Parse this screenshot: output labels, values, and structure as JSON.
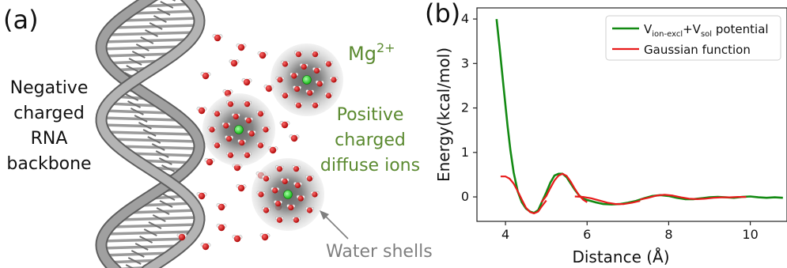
{
  "panel_a": {
    "label": "(a)",
    "backbone_text": [
      "Negative",
      "charged",
      "RNA",
      "backbone"
    ],
    "ion_symbol": "Mg",
    "ion_charge": "2+",
    "diffuse_text": [
      "Positive",
      "charged",
      "diffuse ions"
    ],
    "shell_label": "Water shells",
    "colors": {
      "green_text": "#5b8a30",
      "gray_text": "#7f7f7f",
      "helix": "#8c8c8c",
      "oxygen": "#cc1010",
      "ion": "#22cc22"
    }
  },
  "panel_b": {
    "label": "(b)",
    "chart_data": {
      "type": "line",
      "xlabel": "Distance (Å)",
      "ylabel": "Energy(kcal/mol)",
      "xlim": [
        3.3,
        10.9
      ],
      "ylim": [
        -0.55,
        4.25
      ],
      "xticks": [
        4,
        6,
        8,
        10
      ],
      "yticks": [
        0,
        1,
        2,
        3,
        4
      ],
      "legend_position": "top-right",
      "grid": false,
      "series": [
        {
          "name": "V_ion-excl + V_sol potential",
          "legend_main": "V",
          "legend_sub1": "ion-excl",
          "legend_mid": "+V",
          "legend_sub2": "sol",
          "legend_tail": " potential",
          "color": "#138a13",
          "x": [
            3.78,
            3.85,
            3.95,
            4.05,
            4.12,
            4.2,
            4.3,
            4.4,
            4.5,
            4.6,
            4.7,
            4.8,
            4.9,
            5.0,
            5.1,
            5.2,
            5.3,
            5.4,
            5.5,
            5.6,
            5.7,
            5.8,
            5.9,
            6.0,
            6.2,
            6.4,
            6.6,
            6.8,
            7.0,
            7.2,
            7.4,
            7.6,
            7.8,
            8.0,
            8.2,
            8.4,
            8.6,
            8.8,
            9.0,
            9.2,
            9.4,
            9.6,
            9.8,
            10.0,
            10.2,
            10.4,
            10.6,
            10.8
          ],
          "y": [
            4.0,
            3.4,
            2.5,
            1.6,
            1.05,
            0.55,
            0.12,
            -0.12,
            -0.26,
            -0.33,
            -0.36,
            -0.3,
            -0.1,
            0.1,
            0.32,
            0.48,
            0.52,
            0.52,
            0.44,
            0.3,
            0.16,
            0.04,
            -0.04,
            -0.07,
            -0.12,
            -0.16,
            -0.17,
            -0.16,
            -0.13,
            -0.09,
            -0.03,
            0.02,
            0.04,
            0.02,
            -0.02,
            -0.05,
            -0.05,
            -0.03,
            -0.01,
            0.0,
            -0.01,
            -0.02,
            0.0,
            0.01,
            -0.01,
            -0.02,
            -0.01,
            -0.02
          ]
        },
        {
          "name": "Gaussian function",
          "color": "#e81a1a",
          "segments": [
            {
              "x": [
                3.88,
                4.0,
                4.1,
                4.2,
                4.3,
                4.4,
                4.5,
                4.6,
                4.7,
                4.8,
                4.9,
                5.0
              ],
              "y": [
                0.46,
                0.46,
                0.41,
                0.3,
                0.13,
                -0.06,
                -0.24,
                -0.34,
                -0.37,
                -0.33,
                -0.2,
                -0.08
              ]
            },
            {
              "x": [
                4.88,
                5.0,
                5.1,
                5.2,
                5.3,
                5.4,
                5.5,
                5.6,
                5.7,
                5.8,
                5.9,
                6.0
              ],
              "y": [
                -0.12,
                0.02,
                0.2,
                0.37,
                0.48,
                0.52,
                0.47,
                0.34,
                0.18,
                0.04,
                -0.06,
                -0.12
              ]
            },
            {
              "x": [
                5.7,
                5.9,
                6.1,
                6.3,
                6.5,
                6.7,
                6.9,
                7.1,
                7.3
              ],
              "y": [
                0.01,
                0.0,
                -0.03,
                -0.08,
                -0.13,
                -0.16,
                -0.16,
                -0.13,
                -0.09
              ]
            },
            {
              "x": [
                7.3,
                7.5,
                7.7,
                7.9,
                8.1,
                8.3,
                8.5,
                8.7,
                8.9,
                9.1,
                9.3,
                9.5,
                9.7,
                9.9
              ],
              "y": [
                -0.06,
                -0.02,
                0.03,
                0.05,
                0.03,
                -0.01,
                -0.04,
                -0.05,
                -0.04,
                -0.02,
                -0.01,
                -0.01,
                0.0,
                0.0
              ]
            }
          ]
        }
      ]
    }
  }
}
